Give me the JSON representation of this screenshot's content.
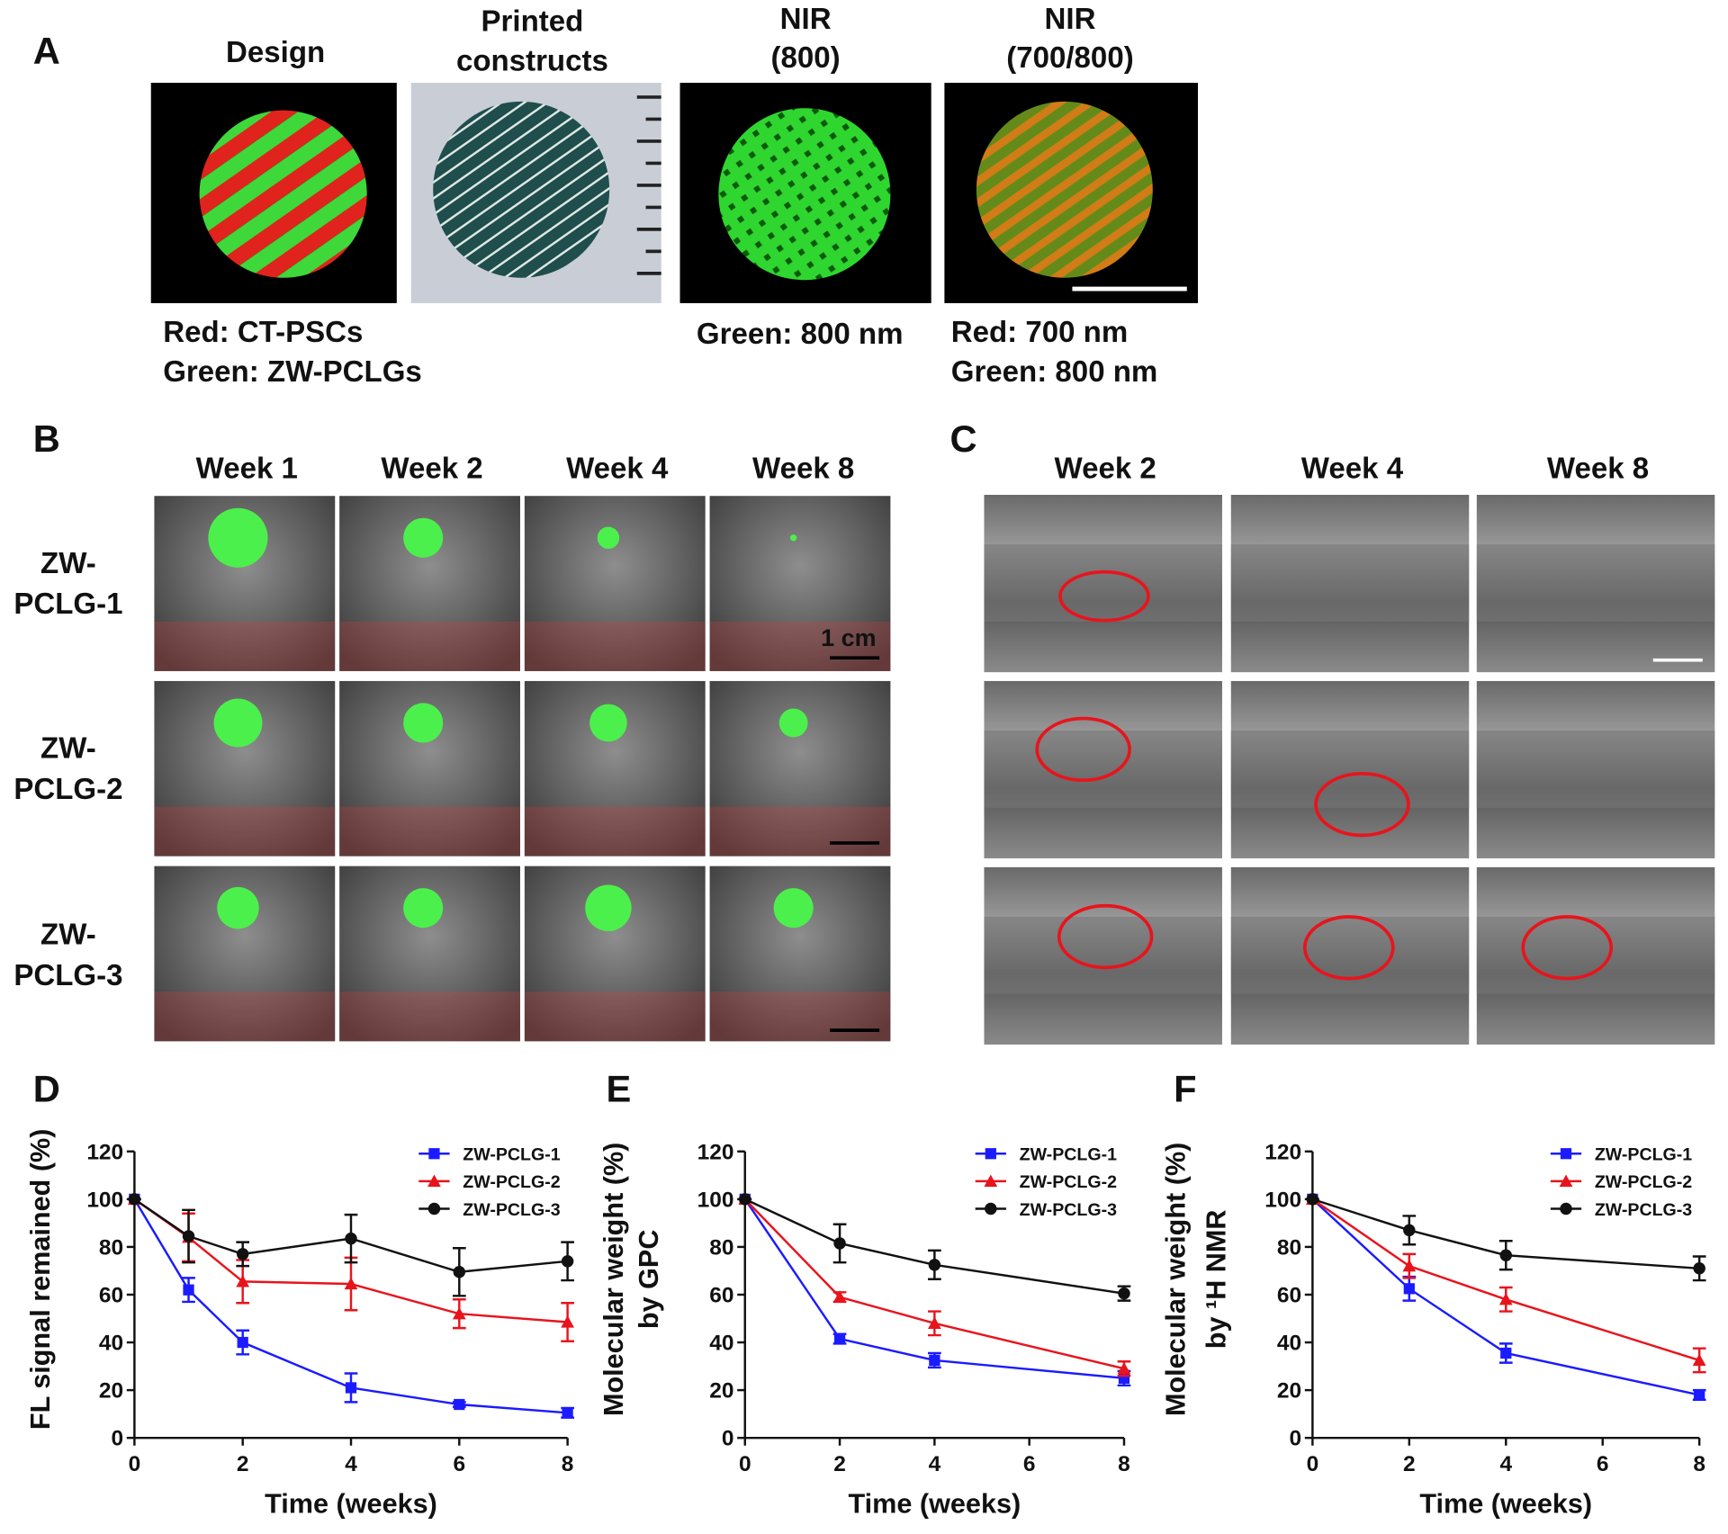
{
  "panel_a": {
    "label": "A",
    "columns": [
      {
        "title": [
          "Design"
        ],
        "caption": [
          "Red: CT-PSCs",
          "Green: ZW-PCLGs"
        ]
      },
      {
        "title": [
          "Printed",
          "constructs"
        ]
      },
      {
        "title": [
          "NIR",
          "(800)"
        ],
        "caption": [
          "Green: 800 nm"
        ]
      },
      {
        "title": [
          "NIR",
          "(700/800)"
        ],
        "caption": [
          "Red: 700 nm",
          "Green: 800 nm"
        ]
      }
    ]
  },
  "panel_b": {
    "label": "B",
    "columns": [
      "Week 1",
      "Week 2",
      "Week 4",
      "Week 8"
    ],
    "rows": [
      [
        "ZW-",
        "PCLG-1"
      ],
      [
        "ZW-",
        "PCLG-2"
      ],
      [
        "ZW-",
        "PCLG-3"
      ]
    ],
    "scale_bar": "1 cm"
  },
  "panel_c": {
    "label": "C",
    "columns": [
      "Week 2",
      "Week 4",
      "Week 8"
    ]
  },
  "chart_data": [
    {
      "type": "line",
      "label": "D",
      "y_label": [
        "FL signal remained (%)"
      ],
      "x_label": "Time (weeks)",
      "xlim": [
        0,
        8
      ],
      "xticks": [
        0,
        2,
        4,
        6,
        8
      ],
      "ylim": [
        0,
        120
      ],
      "yticks": [
        0,
        20,
        40,
        60,
        80,
        100,
        120
      ],
      "legend": "upper right",
      "x": [
        0,
        1,
        2,
        4,
        6,
        8
      ],
      "series": [
        {
          "name": "ZW-PCLG-1",
          "color": "#1b1bff",
          "marker": "square",
          "values": [
            100,
            62,
            40,
            21,
            14,
            10.5
          ],
          "errors": [
            0,
            5,
            5,
            6,
            1,
            2
          ]
        },
        {
          "name": "ZW-PCLG-2",
          "color": "#e8141c",
          "marker": "triangle",
          "values": [
            100,
            84,
            65.5,
            64.5,
            52,
            48.5
          ],
          "errors": [
            0,
            10,
            9,
            11,
            6,
            8
          ]
        },
        {
          "name": "ZW-PCLG-3",
          "color": "#111111",
          "marker": "circle",
          "values": [
            100,
            84.5,
            77,
            83.5,
            69.5,
            74
          ],
          "errors": [
            0,
            11,
            5,
            10,
            10,
            8
          ]
        }
      ]
    },
    {
      "type": "line",
      "label": "E",
      "y_label": [
        "Molecular weight (%)",
        "by GPC"
      ],
      "x_label": "Time (weeks)",
      "xlim": [
        0,
        8
      ],
      "xticks": [
        0,
        2,
        4,
        6,
        8
      ],
      "ylim": [
        0,
        120
      ],
      "yticks": [
        0,
        20,
        40,
        60,
        80,
        100,
        120
      ],
      "legend": "upper right",
      "x": [
        0,
        2,
        4,
        8
      ],
      "series": [
        {
          "name": "ZW-PCLG-1",
          "color": "#1b1bff",
          "marker": "square",
          "values": [
            100,
            41.5,
            32.5,
            25
          ],
          "errors": [
            0,
            2,
            3,
            3
          ]
        },
        {
          "name": "ZW-PCLG-2",
          "color": "#e8141c",
          "marker": "triangle",
          "values": [
            100,
            59,
            48,
            29
          ],
          "errors": [
            0,
            2,
            5,
            3
          ]
        },
        {
          "name": "ZW-PCLG-3",
          "color": "#111111",
          "marker": "circle",
          "values": [
            100,
            81.5,
            72.5,
            60.5
          ],
          "errors": [
            0,
            8,
            6,
            3
          ]
        }
      ]
    },
    {
      "type": "line",
      "label": "F",
      "y_label": [
        "Molecular weight (%)",
        "by ¹H NMR"
      ],
      "x_label": "Time (weeks)",
      "xlim": [
        0,
        8
      ],
      "xticks": [
        0,
        2,
        4,
        6,
        8
      ],
      "ylim": [
        0,
        120
      ],
      "yticks": [
        0,
        20,
        40,
        60,
        80,
        100,
        120
      ],
      "legend": "upper right",
      "x": [
        0,
        2,
        4,
        8
      ],
      "series": [
        {
          "name": "ZW-PCLG-1",
          "color": "#1b1bff",
          "marker": "square",
          "values": [
            100,
            62.5,
            35.5,
            18
          ],
          "errors": [
            0,
            5,
            4,
            2
          ]
        },
        {
          "name": "ZW-PCLG-2",
          "color": "#e8141c",
          "marker": "triangle",
          "values": [
            100,
            72,
            58,
            32.5
          ],
          "errors": [
            0,
            5,
            5,
            5
          ]
        },
        {
          "name": "ZW-PCLG-3",
          "color": "#111111",
          "marker": "circle",
          "values": [
            100,
            87,
            76.5,
            71
          ],
          "errors": [
            0,
            6,
            6,
            5
          ]
        }
      ]
    }
  ]
}
